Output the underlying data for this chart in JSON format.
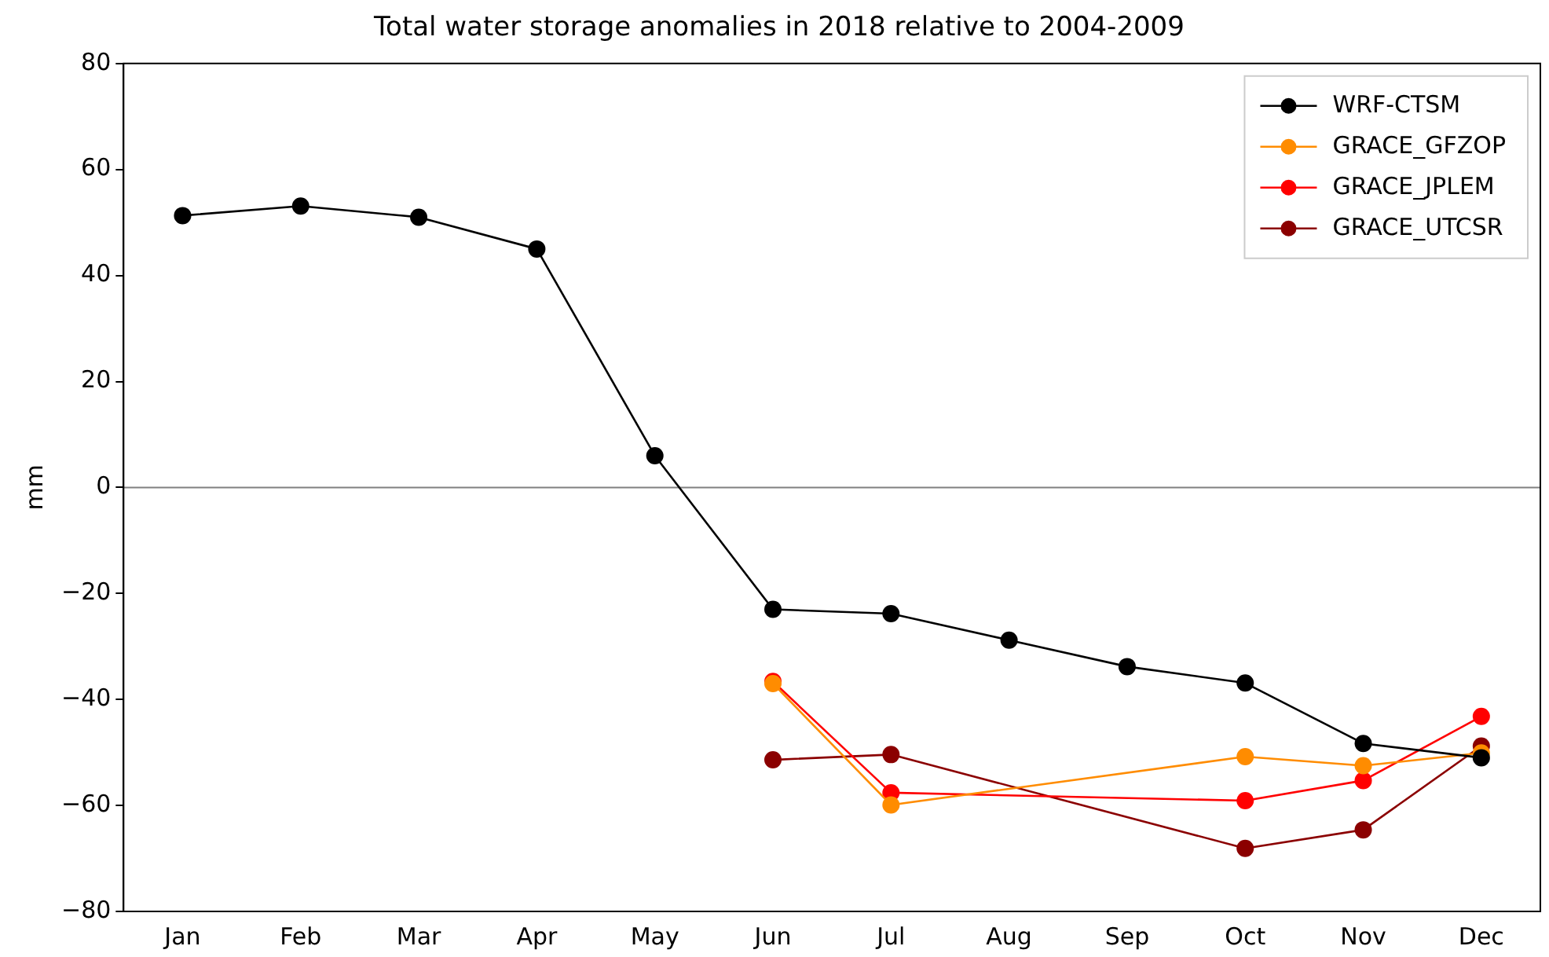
{
  "chart_data": {
    "type": "line",
    "title": "Total water storage anomalies in 2018 relative to 2004-2009",
    "ylabel": "mm",
    "categories": [
      "Jan",
      "Feb",
      "Mar",
      "Apr",
      "May",
      "Jun",
      "Jul",
      "Aug",
      "Sep",
      "Oct",
      "Nov",
      "Dec"
    ],
    "series": [
      {
        "name": "WRF-CTSM",
        "color": "#000000",
        "values": [
          51.3,
          53.1,
          51,
          45,
          6,
          -23,
          -23.8,
          -28.8,
          -33.8,
          -36.9,
          -48.3,
          -51
        ]
      },
      {
        "name": "GRACE_GFZOP",
        "color": "#ff8c00",
        "values": [
          null,
          null,
          null,
          null,
          null,
          -37,
          -59.9,
          null,
          null,
          -50.8,
          -52.5,
          -50.1
        ]
      },
      {
        "name": "GRACE_JPLEM",
        "color": "#ff0000",
        "values": [
          null,
          null,
          null,
          null,
          null,
          -36.6,
          -57.6,
          null,
          null,
          -59.1,
          -55.3,
          -43.2
        ]
      },
      {
        "name": "GRACE_UTCSR",
        "color": "#8b0000",
        "values": [
          null,
          null,
          null,
          null,
          null,
          -51.4,
          -50.4,
          null,
          null,
          -68.1,
          -64.6,
          -48.8
        ]
      }
    ],
    "ylim": [
      -80,
      80
    ],
    "yticks": [
      -80,
      -60,
      -40,
      -20,
      0,
      20,
      40,
      60,
      80
    ],
    "ref_lines": [
      {
        "axis": "y",
        "value": 0,
        "color": "#808080"
      }
    ],
    "grid": false,
    "legend": "top right",
    "marker": "circle",
    "line_style": "solid"
  }
}
